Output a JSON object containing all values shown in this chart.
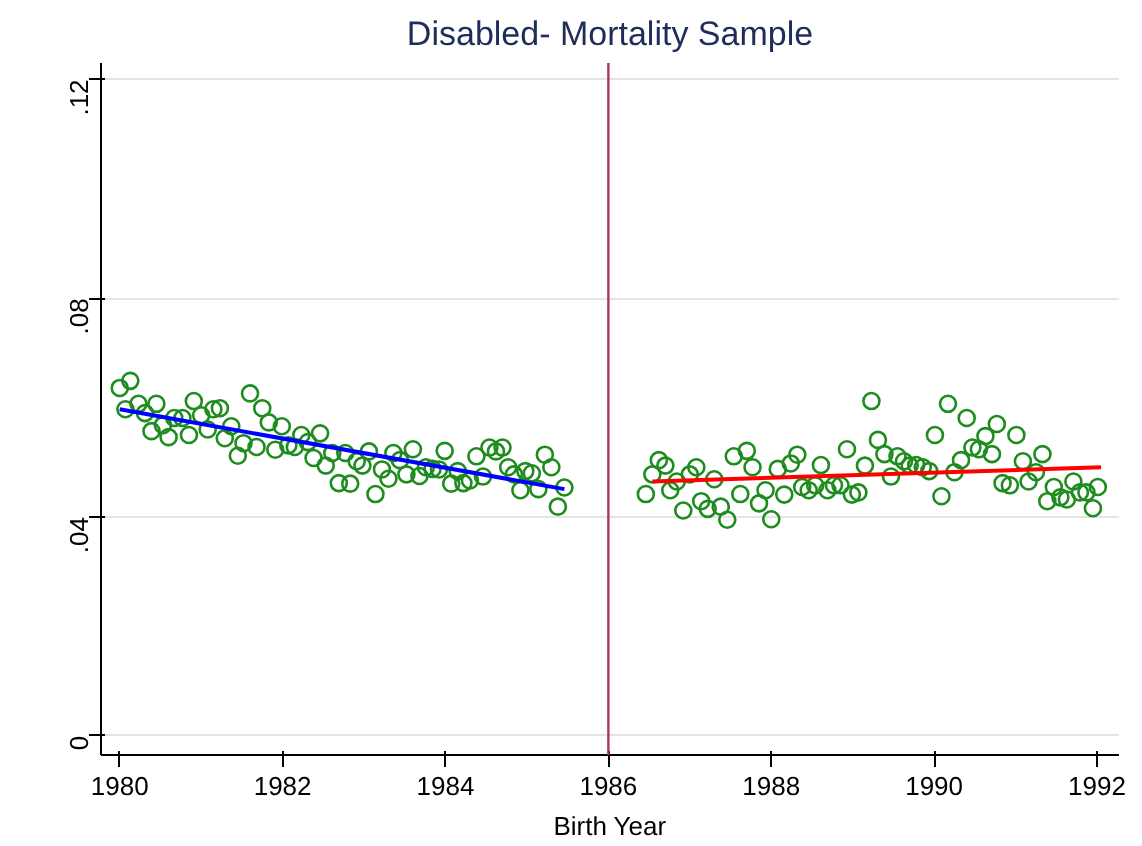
{
  "chart_data": {
    "type": "scatter",
    "title": "Disabled- Mortality Sample",
    "xlabel": "Birth Year",
    "xlim": [
      1979.77,
      1992.27
    ],
    "ylim": [
      -0.0035,
      0.123
    ],
    "xticks": [
      1980,
      1982,
      1984,
      1986,
      1988,
      1990,
      1992
    ],
    "yticks": [
      {
        "value": 0,
        "label": "0"
      },
      {
        "value": 0.04,
        "label": ".04"
      },
      {
        "value": 0.08,
        "label": ".08"
      },
      {
        "value": 0.12,
        "label": ".12"
      }
    ],
    "grid": "y",
    "ref_lines": [
      {
        "axis": "x",
        "value": 1986,
        "color": "#b03060"
      }
    ],
    "series": [
      {
        "marker": "circle",
        "color": "#1e8c1e",
        "x": [
          1980.0,
          1980.13,
          1980.07,
          1980.23,
          1980.31,
          1980.39,
          1980.45,
          1980.53,
          1980.6,
          1980.67,
          1980.77,
          1980.85,
          1980.91,
          1981.0,
          1981.08,
          1981.15,
          1981.23,
          1981.29,
          1981.37,
          1981.45,
          1981.52,
          1981.6,
          1981.68,
          1981.75,
          1981.83,
          1981.91,
          1981.99,
          1982.07,
          1982.15,
          1982.23,
          1982.31,
          1982.38,
          1982.46,
          1982.53,
          1982.61,
          1982.69,
          1982.77,
          1982.83,
          1982.91,
          1982.98,
          1983.06,
          1983.14,
          1983.22,
          1983.3,
          1983.36,
          1983.44,
          1983.52,
          1983.6,
          1983.68,
          1983.76,
          1983.84,
          1983.92,
          1983.99,
          1984.07,
          1984.15,
          1984.22,
          1984.3,
          1984.38,
          1984.46,
          1984.54,
          1984.62,
          1984.7,
          1984.77,
          1984.84,
          1984.92,
          1984.98,
          1985.06,
          1985.14,
          1985.22,
          1985.3,
          1985.38,
          1985.46,
          1986.46,
          1986.54,
          1986.62,
          1986.7,
          1986.76,
          1986.84,
          1986.92,
          1987.0,
          1987.08,
          1987.14,
          1987.22,
          1987.3,
          1987.38,
          1987.46,
          1987.54,
          1987.62,
          1987.7,
          1987.77,
          1987.85,
          1987.93,
          1988.0,
          1988.08,
          1988.16,
          1988.24,
          1988.32,
          1988.38,
          1988.46,
          1988.54,
          1988.61,
          1988.69,
          1988.77,
          1988.85,
          1988.93,
          1988.99,
          1989.07,
          1989.15,
          1989.23,
          1989.31,
          1989.39,
          1989.47,
          1989.55,
          1989.63,
          1989.7,
          1989.78,
          1989.86,
          1989.94,
          1990.01,
          1990.09,
          1990.17,
          1990.25,
          1990.33,
          1990.4,
          1990.47,
          1990.55,
          1990.63,
          1990.71,
          1990.77,
          1990.84,
          1990.93,
          1991.01,
          1991.09,
          1991.16,
          1991.25,
          1991.33,
          1991.39,
          1991.47,
          1991.55,
          1991.63,
          1991.71,
          1991.79,
          1991.87,
          1991.95,
          1992.01
        ],
        "values": [
          0.0636,
          0.0649,
          0.0597,
          0.0607,
          0.059,
          0.0557,
          0.0607,
          0.0568,
          0.0546,
          0.0581,
          0.0581,
          0.055,
          0.0612,
          0.0586,
          0.056,
          0.0597,
          0.0599,
          0.0544,
          0.0566,
          0.0512,
          0.0535,
          0.0626,
          0.0528,
          0.0599,
          0.0573,
          0.0523,
          0.0566,
          0.0531,
          0.0528,
          0.055,
          0.0537,
          0.0508,
          0.0553,
          0.0494,
          0.0517,
          0.0462,
          0.0517,
          0.0461,
          0.0502,
          0.0494,
          0.052,
          0.0442,
          0.0487,
          0.047,
          0.0517,
          0.0504,
          0.0478,
          0.0524,
          0.0475,
          0.0491,
          0.0488,
          0.0487,
          0.0521,
          0.0461,
          0.0484,
          0.0462,
          0.0467,
          0.0511,
          0.0474,
          0.0527,
          0.052,
          0.0527,
          0.0491,
          0.0478,
          0.0449,
          0.0484,
          0.048,
          0.0451,
          0.0514,
          0.0491,
          0.0419,
          0.0454,
          0.0442,
          0.0478,
          0.0504,
          0.0494,
          0.0449,
          0.0465,
          0.0412,
          0.0478,
          0.0491,
          0.0429,
          0.0415,
          0.0469,
          0.0419,
          0.0395,
          0.0511,
          0.0442,
          0.0521,
          0.0491,
          0.0425,
          0.0449,
          0.0396,
          0.0488,
          0.0441,
          0.0498,
          0.0514,
          0.0455,
          0.0449,
          0.0458,
          0.0495,
          0.0449,
          0.0458,
          0.0458,
          0.0524,
          0.0441,
          0.0445,
          0.0494,
          0.0612,
          0.0541,
          0.0515,
          0.0474,
          0.0511,
          0.0502,
          0.0494,
          0.0495,
          0.0491,
          0.0484,
          0.055,
          0.0438,
          0.0607,
          0.0482,
          0.0504,
          0.0581,
          0.0527,
          0.0524,
          0.0548,
          0.0515,
          0.057,
          0.0462,
          0.0458,
          0.055,
          0.0502,
          0.0465,
          0.0482,
          0.0515,
          0.0429,
          0.0455,
          0.0436,
          0.0432,
          0.0465,
          0.0445,
          0.0445,
          0.0416,
          0.0455
        ]
      },
      {
        "type": "line",
        "marker": "none",
        "color": "#0000ff",
        "x": [
          1980.0,
          1985.46
        ],
        "values": [
          0.0597,
          0.0451
        ]
      },
      {
        "type": "line",
        "marker": "none",
        "color": "#ff0000",
        "x": [
          1986.54,
          1992.05
        ],
        "values": [
          0.0465,
          0.0491
        ]
      }
    ]
  }
}
